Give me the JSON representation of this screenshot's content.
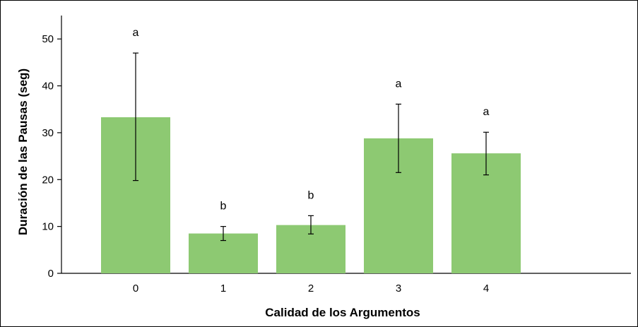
{
  "chart_data": {
    "type": "bar",
    "title": "",
    "xlabel": "Calidad de los Argumentos",
    "ylabel": "Duración de las Pausas (seg)",
    "categories": [
      "0",
      "1",
      "2",
      "3",
      "4"
    ],
    "values": [
      33.3,
      8.5,
      10.3,
      28.8,
      25.6
    ],
    "error_low": [
      19.8,
      7.0,
      8.4,
      21.5,
      21.0
    ],
    "error_high": [
      47.0,
      10.0,
      12.3,
      36.1,
      30.1
    ],
    "significance_labels": [
      "a",
      "b",
      "b",
      "a",
      "a"
    ],
    "ylim": [
      0,
      55
    ],
    "yticks": [
      0,
      10,
      20,
      30,
      40,
      50
    ],
    "grid": false,
    "legend": "none",
    "bar_color": "#8dc972",
    "axis_color": "#000000"
  }
}
